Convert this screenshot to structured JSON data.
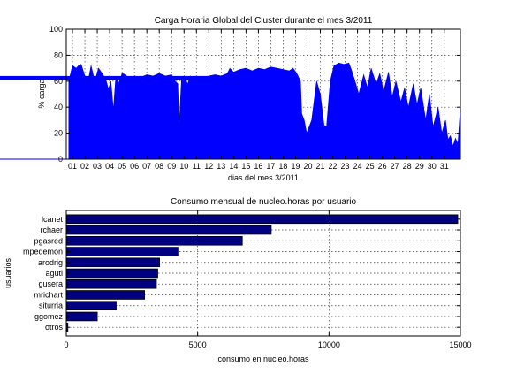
{
  "chart_data": [
    {
      "type": "area",
      "title": "Carga Horaria Global del Cluster durante el mes 3/2011",
      "xlabel": "dias del mes 3/2011",
      "ylabel": "% carga",
      "ylim": [
        0,
        100
      ],
      "yticks": [
        0,
        20,
        40,
        60,
        80,
        100
      ],
      "xticks": [
        "01",
        "02",
        "03",
        "04",
        "05",
        "06",
        "07",
        "08",
        "09",
        "10",
        "11",
        "12",
        "13",
        "14",
        "15",
        "16",
        "17",
        "18",
        "19",
        "20",
        "21",
        "22",
        "23",
        "24",
        "25",
        "26",
        "27",
        "28",
        "29",
        "30",
        "31"
      ],
      "xlim": [
        0,
        31.8
      ],
      "grid": true,
      "color": "#0000ff",
      "overlay_band": {
        "y_range": [
          61,
          64
        ],
        "x_start": -6.3,
        "x_end": 18.6
      },
      "baseline_segment_x": [
        -6.3,
        0.2
      ],
      "series": [
        {
          "x": [
            0.2,
            0.5,
            0.8,
            1.0,
            1.2,
            1.5,
            1.8,
            2.0,
            2.3,
            2.6,
            2.9,
            3.2,
            3.4,
            3.6,
            3.8,
            4.0,
            4.2,
            4.5,
            4.8,
            5.0,
            5.5,
            6.0,
            6.5,
            7.0,
            7.5,
            8.0,
            8.5,
            8.8,
            9.0,
            9.1,
            9.3,
            9.5,
            9.8,
            10.0,
            10.5,
            11.0,
            11.5,
            12.0,
            12.5,
            13.0,
            13.2,
            13.5,
            14.0,
            14.5,
            15.0,
            15.5,
            16.0,
            16.5,
            17.0,
            17.5,
            18.0,
            18.3,
            18.6,
            18.9,
            19.0,
            19.2,
            19.4,
            19.6,
            19.8,
            20.0,
            20.2,
            20.5,
            20.8,
            21.0,
            21.3,
            21.6,
            22.0,
            22.4,
            22.8,
            23.0,
            23.3,
            23.6,
            24.0,
            24.3,
            24.6,
            25.0,
            25.3,
            25.6,
            26.0,
            26.3,
            26.6,
            27.0,
            27.3,
            27.6,
            28.0,
            28.3,
            28.6,
            29.0,
            29.3,
            29.6,
            30.0,
            30.3,
            30.6,
            30.8,
            31.0,
            31.2,
            31.4,
            31.6,
            31.8
          ],
          "y": [
            60,
            72,
            70,
            72,
            73,
            64,
            62,
            72,
            60,
            70,
            66,
            61,
            54,
            60,
            38,
            64,
            58,
            66,
            65,
            62,
            64,
            63,
            65,
            64,
            66,
            64,
            65,
            60,
            58,
            24,
            62,
            63,
            58,
            64,
            62,
            63,
            64,
            65,
            64,
            66,
            70,
            67,
            69,
            70,
            68,
            70,
            69,
            71,
            70,
            69,
            68,
            70,
            66,
            60,
            35,
            30,
            20,
            25,
            30,
            45,
            60,
            50,
            26,
            25,
            60,
            72,
            74,
            73,
            74,
            69,
            60,
            50,
            65,
            55,
            70,
            58,
            66,
            52,
            67,
            48,
            60,
            44,
            55,
            40,
            58,
            42,
            55,
            30,
            50,
            25,
            40,
            20,
            30,
            15,
            18,
            10,
            16,
            12,
            40
          ]
        }
      ]
    },
    {
      "type": "bar",
      "orientation": "horizontal",
      "title": "Consumo mensual de nucleo.horas por usuario",
      "xlabel": "consumo en nucleo.horas",
      "ylabel": "usuarios",
      "xlim": [
        0,
        15000
      ],
      "xticks": [
        0,
        5000,
        10000,
        15000
      ],
      "grid": true,
      "color": "#000080",
      "categories": [
        "lcanet",
        "rchaer",
        "pgasred",
        "mpedemon",
        "arodrig",
        "aguti",
        "gusera",
        "mrichart",
        "siturria",
        "ggomez",
        "otros"
      ],
      "values": [
        14900,
        7800,
        6700,
        4250,
        3550,
        3480,
        3430,
        2980,
        1900,
        1180,
        60
      ]
    }
  ]
}
